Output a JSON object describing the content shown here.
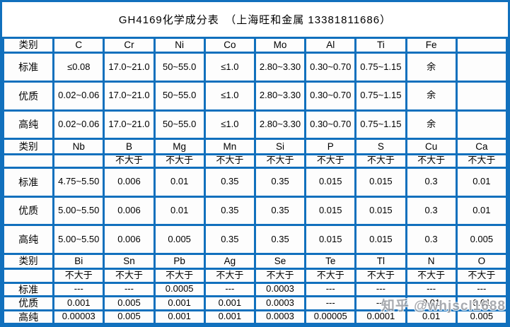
{
  "title": "GH4169化学成分表　（上海旺和金属  13381811686）",
  "watermark": "知乎 @whjscl1688",
  "colors": {
    "border": "#1170BD",
    "cell_background": "#FDFDFD",
    "text": "#000000",
    "watermark": "#9A9DA3"
  },
  "table": {
    "sections": [
      {
        "header": [
          "类别",
          "C",
          "Cr",
          "Ni",
          "Co",
          "Mo",
          "Al",
          "Ti",
          "Fe",
          ""
        ],
        "rows": [
          [
            "标准",
            "≤0.08",
            "17.0~21.0",
            "50~55.0",
            "≤1.0",
            "2.80~3.30",
            "0.30~0.70",
            "0.75~1.15",
            "余",
            ""
          ],
          [
            "优质",
            "0.02~0.06",
            "17.0~21.0",
            "50~55.0",
            "≤1.0",
            "2.80~3.30",
            "0.30~0.70",
            "0.75~1.15",
            "余",
            ""
          ],
          [
            "高纯",
            "0.02~0.06",
            "17.0~21.0",
            "50~55.0",
            "≤1.0",
            "2.80~3.30",
            "0.30~0.70",
            "0.75~1.15",
            "余",
            ""
          ]
        ]
      },
      {
        "header": [
          "类别",
          "Nb",
          "B",
          "Mg",
          "Mn",
          "Si",
          "P",
          "S",
          "Cu",
          "Ca"
        ],
        "limit": [
          "",
          "",
          "不大于",
          "不大于",
          "不大于",
          "不大于",
          "不大于",
          "不大于",
          "不大于",
          "不大于"
        ],
        "rows": [
          [
            "标准",
            "4.75~5.50",
            "0.006",
            "0.01",
            "0.35",
            "0.35",
            "0.015",
            "0.015",
            "0.3",
            "0.01"
          ],
          [
            "优质",
            "5.00~5.50",
            "0.006",
            "0.01",
            "0.35",
            "0.35",
            "0.015",
            "0.015",
            "0.3",
            "0.01"
          ],
          [
            "高纯",
            "5.00~5.50",
            "0.006",
            "0.005",
            "0.35",
            "0.35",
            "0.015",
            "0.015",
            "0.3",
            "0.005"
          ]
        ]
      },
      {
        "header": [
          "类别",
          "Bi",
          "Sn",
          "Pb",
          "Ag",
          "Se",
          "Te",
          "Tl",
          "N",
          "O"
        ],
        "limit": [
          "",
          "不大于",
          "不大于",
          "不大于",
          "不大于",
          "不大于",
          "不大于",
          "不大于",
          "不大于",
          "不大于"
        ],
        "rows": [
          [
            "标准",
            "---",
            "---",
            "0.0005",
            "---",
            "0.0003",
            "---",
            "---",
            "---",
            "---"
          ],
          [
            "优质",
            "0.001",
            "0.005",
            "0.001",
            "0.001",
            "0.0003",
            "---",
            "---",
            "0.01",
            "0.01"
          ],
          [
            "高纯",
            "0.00003",
            "0.005",
            "0.001",
            "0.001",
            "0.0003",
            "0.00005",
            "0.0001",
            "0.01",
            "0.005"
          ]
        ]
      }
    ]
  }
}
